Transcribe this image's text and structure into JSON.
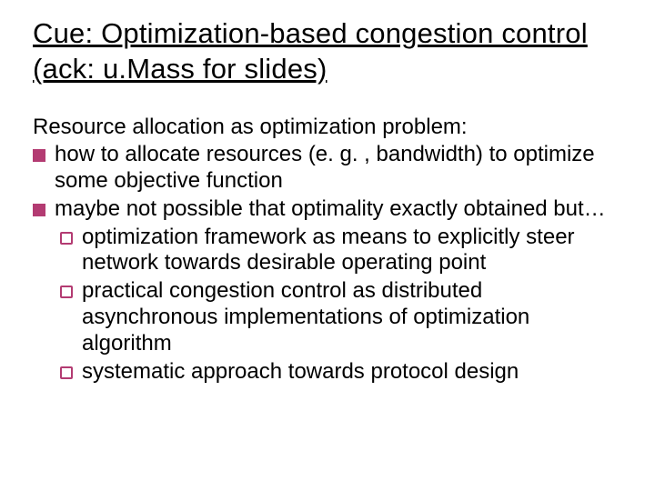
{
  "colors": {
    "text": "#000000",
    "background": "#ffffff",
    "bullet_fill": "#b33b72",
    "bullet_outline": "#b33b72"
  },
  "typography": {
    "title_fontsize": 31,
    "body_fontsize": 24,
    "font_family": "Comic Sans MS"
  },
  "title": "Cue: Optimization-based congestion control (ack: u.Mass for slides)",
  "lead": "Resource allocation as optimization problem:",
  "items": [
    {
      "text": "how to allocate resources (e. g. , bandwidth) to optimize some objective function",
      "children": []
    },
    {
      "text": "maybe not possible that optimality exactly obtained but…",
      "children": [
        "optimization framework as means to explicitly steer network towards desirable operating point",
        "practical congestion control as distributed asynchronous implementations of optimization algorithm",
        "systematic approach towards protocol design"
      ]
    }
  ]
}
